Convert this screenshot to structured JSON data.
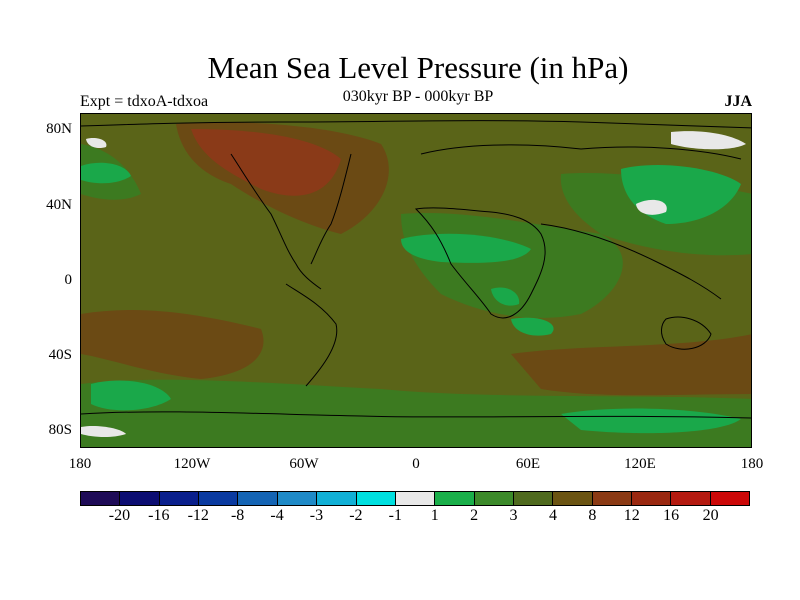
{
  "title": "Mean Sea Level Pressure (in hPa)",
  "subtitle": "030kyr BP - 000kyr BP",
  "left_label": "Expt = tdxoA-tdxoa",
  "right_label": "JJA",
  "axes": {
    "y_ticks": [
      "80N",
      "40N",
      "0",
      "40S",
      "80S"
    ],
    "x_ticks": [
      "180",
      "120W",
      "60W",
      "0",
      "60E",
      "120E",
      "180"
    ]
  },
  "colors": {
    "background_field": "#5a6418",
    "land_green": "#1aa84a",
    "mid_green": "#3c7a20",
    "dark_green": "#4b6a1c",
    "brown": "#6b4a14",
    "rust": "#8a3a18",
    "white_patch": "#e8e8e8",
    "coastline": "#000000"
  },
  "legend": {
    "colors": [
      "#1e0b57",
      "#0c0d72",
      "#0a1f8c",
      "#0a3aa0",
      "#1464b4",
      "#1f8ac7",
      "#11b0d6",
      "#00e0e0",
      "#e8e8e8",
      "#1aaf4a",
      "#3c8a2a",
      "#4f6a1e",
      "#6b5412",
      "#8b3a14",
      "#9a2810",
      "#b41a10",
      "#cc0808"
    ],
    "labels": [
      "-20",
      "-16",
      "-12",
      "-8",
      "-4",
      "-3",
      "-2",
      "-1",
      "1",
      "2",
      "3",
      "4",
      "8",
      "12",
      "16",
      "20"
    ]
  }
}
